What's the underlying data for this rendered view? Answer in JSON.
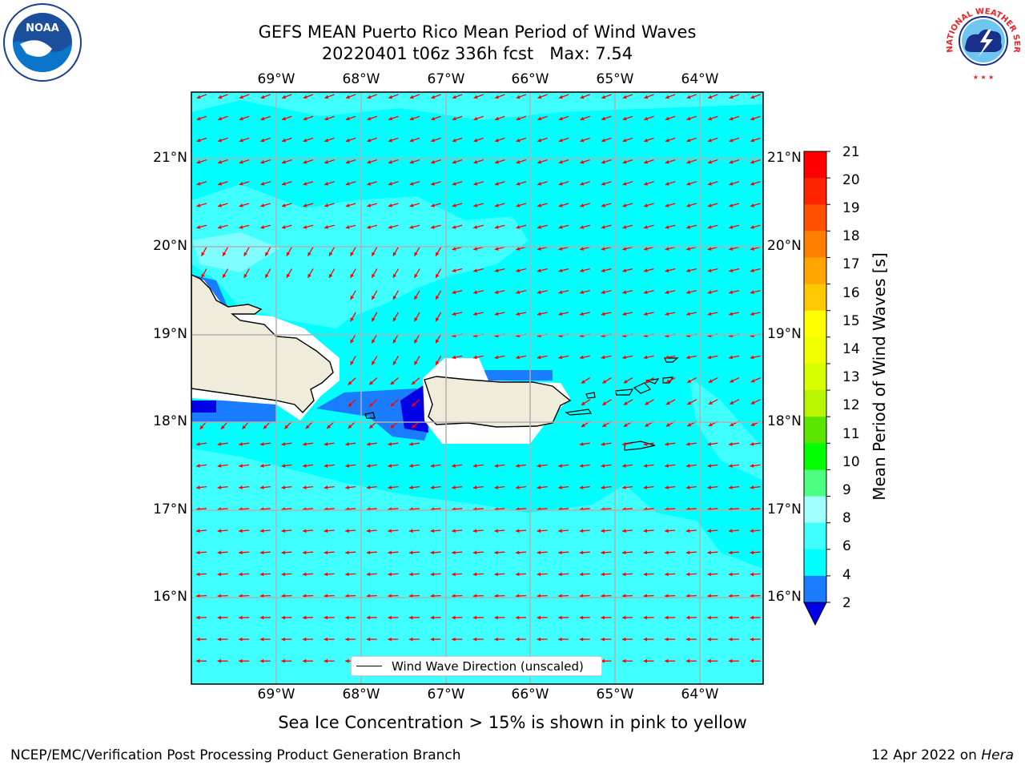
{
  "title": {
    "line1": "GEFS MEAN Puerto Rico Mean Period of Wind Waves",
    "line2": "20220401 t06z 336h fcst   Max: 7.54"
  },
  "map": {
    "lon_labels": [
      "69°W",
      "68°W",
      "67°W",
      "66°W",
      "65°W",
      "64°W"
    ],
    "lat_labels": [
      "21°N",
      "20°N",
      "19°N",
      "18°N",
      "17°N",
      "16°N"
    ],
    "colors": {
      "ocean": "#00ffff",
      "ocean_light": "#40ffff",
      "ocean_lighter": "#80fdff",
      "wave_blue": "#1a7dff",
      "wave_darkblue": "#0000e6",
      "land": "#efecdc",
      "arrow": "#ff0000",
      "grid": "#b0b0b0"
    },
    "legend_label": "Wind Wave Direction (unscaled)"
  },
  "colorbar": {
    "label": "Mean Period of Wind Waves [s]",
    "ticks": [
      "21",
      "20",
      "19",
      "18",
      "17",
      "16",
      "15",
      "14",
      "13",
      "12",
      "11",
      "10",
      "9",
      "8",
      "6",
      "4",
      "2"
    ],
    "colors": [
      "#ff0000",
      "#ff2400",
      "#ff5000",
      "#ff8000",
      "#ffa500",
      "#ffc800",
      "#ffff00",
      "#f2ff00",
      "#d8ff00",
      "#b8f600",
      "#5ae600",
      "#00ff00",
      "#4dff80",
      "#a0ffff",
      "#40ffff",
      "#00ffff",
      "#1a7dff",
      "#0000e6"
    ]
  },
  "sea_ice_note": "Sea Ice Concentration > 15% is shown in pink to yellow",
  "footer": {
    "left": "NCEP/EMC/Verification Post Processing Product Generation Branch",
    "right_prefix": "12 Apr 2022 on ",
    "right_machine": "Hera"
  },
  "logos": {
    "noaa_text": "NOAA",
    "nws_text": "NATIONAL WEATHER SERVICE"
  }
}
